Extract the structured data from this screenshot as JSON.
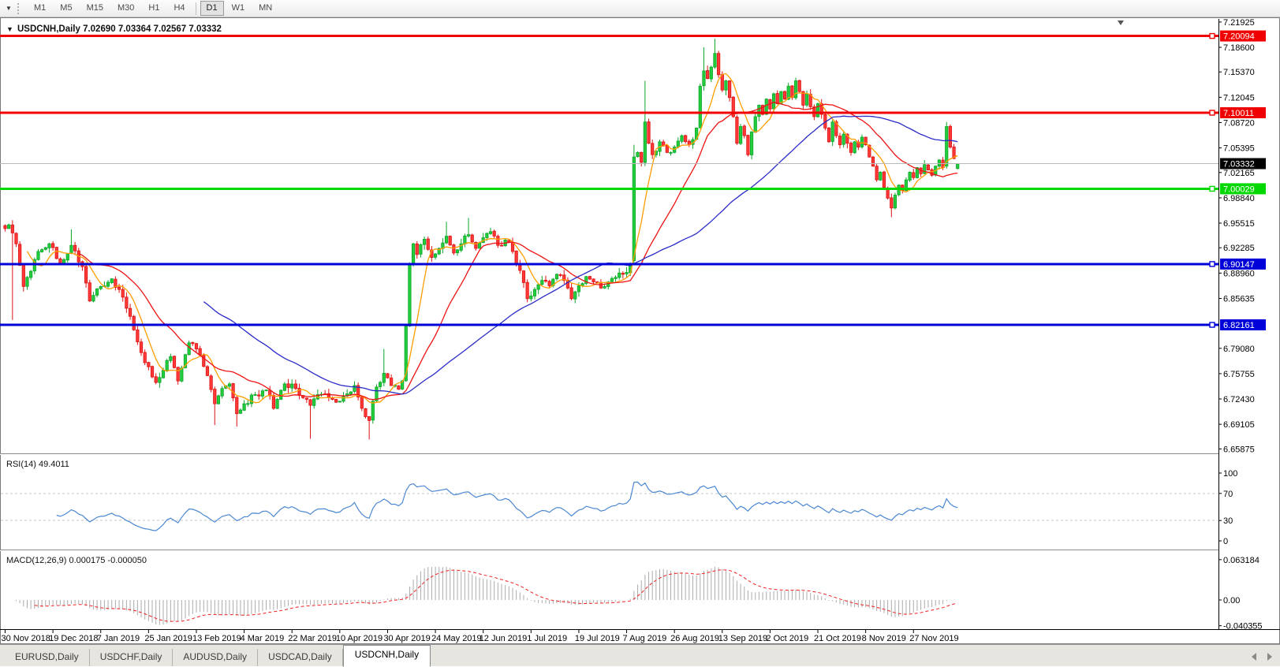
{
  "toolbar": {
    "dropdown_icon": "▼",
    "timeframes": [
      {
        "label": "M1",
        "active": false
      },
      {
        "label": "M5",
        "active": false
      },
      {
        "label": "M15",
        "active": false
      },
      {
        "label": "M30",
        "active": false
      },
      {
        "label": "H1",
        "active": false
      },
      {
        "label": "H4",
        "active": false
      },
      {
        "label": "D1",
        "active": true,
        "sep_before": true
      },
      {
        "label": "W1",
        "active": false
      },
      {
        "label": "MN",
        "active": false
      }
    ]
  },
  "header": {
    "collapse_icon": "▼",
    "title": "USDCNH,Daily  7.02690 7.03364 7.02567 7.03332"
  },
  "price_axis": {
    "ticks": [
      "7.21925",
      "7.18600",
      "7.15370",
      "7.12045",
      "7.08720",
      "7.05395",
      "7.02165",
      "6.98840",
      "6.95515",
      "6.92285",
      "6.88960",
      "6.85635",
      "6.79080",
      "6.75755",
      "6.72430",
      "6.69105",
      "6.65875"
    ]
  },
  "rsi_panel": {
    "title": "RSI(14) 49.4011",
    "value": 49.4011,
    "levels": [
      100,
      70,
      30,
      0
    ],
    "line_color": "#4b87d2"
  },
  "macd_panel": {
    "title": "MACD(12,26,9) 0.000175 -0.000050",
    "macd_value": 0.000175,
    "signal_value": -5e-05,
    "scale": [
      {
        "label": "0.063184",
        "v": 0.063184
      },
      {
        "label": "0.00",
        "v": 0
      },
      {
        "label": "-0.040355",
        "v": -0.040355
      }
    ],
    "histogram_color": "#ababab",
    "signal_color": "#f02020"
  },
  "date_axis": {
    "tick_interval_bars": 13,
    "labels": [
      "30 Nov 2018",
      "19 Dec 2018",
      "7 Jan 2019",
      "25 Jan 2019",
      "13 Feb 2019",
      "4 Mar 2019",
      "22 Mar 2019",
      "10 Apr 2019",
      "30 Apr 2019",
      "24 May 2019",
      "12 Jun 2019",
      "1 Jul 2019",
      "19 Jul 2019",
      "7 Aug 2019",
      "26 Aug 2019",
      "13 Sep 2019",
      "2 Oct 2019",
      "21 Oct 2019",
      "8 Nov 2019",
      "27 Nov 2019"
    ]
  },
  "tabs": [
    {
      "label": "EURUSD,Daily",
      "active": false
    },
    {
      "label": "USDCHF,Daily",
      "active": false
    },
    {
      "label": "AUDUSD,Daily",
      "active": false
    },
    {
      "label": "USDCAD,Daily",
      "active": false
    },
    {
      "label": "USDCNH,Daily",
      "active": true
    }
  ],
  "chart_data": {
    "type": "candlestick",
    "symbol": "USDCNH",
    "timeframe": "Daily",
    "current_bar": {
      "open": 7.0269,
      "high": 7.03364,
      "low": 7.02567,
      "close": 7.03332
    },
    "bar_count": 260,
    "y_range": {
      "min": 6.65875,
      "max": 7.21925
    },
    "horizontal_lines": [
      {
        "price": 7.20094,
        "label": "7.20094",
        "color": "#f00000",
        "width": 3,
        "kind": "resistance"
      },
      {
        "price": 7.10011,
        "label": "7.10011",
        "color": "#f00000",
        "width": 3,
        "kind": "resistance"
      },
      {
        "price": 7.00029,
        "label": "7.00029",
        "color": "#00d800",
        "width": 3,
        "kind": "support"
      },
      {
        "price": 6.90147,
        "label": "6.90147",
        "color": "#0000d8",
        "width": 3,
        "kind": "support"
      },
      {
        "price": 6.82161,
        "label": "6.82161",
        "color": "#0000d8",
        "width": 3,
        "kind": "support"
      }
    ],
    "current_price_line": {
      "price": 7.03332,
      "label": "7.03332",
      "line_color": "#b8b8b8",
      "label_bg": "#000000"
    },
    "moving_averages": [
      {
        "period": 7,
        "color": "#ff9d00"
      },
      {
        "period": 21,
        "color": "#ee1414"
      },
      {
        "period": 55,
        "color": "#2b2bc8"
      }
    ],
    "candle_colors": {
      "up_fill": "#22ce3c",
      "up_stroke": "#0ca52a",
      "down_fill": "#ff3838",
      "down_stroke": "#dd1212"
    },
    "noise": 0.009,
    "close_keyframes": [
      [
        0,
        6.948
      ],
      [
        1,
        6.953
      ],
      [
        3,
        6.928
      ],
      [
        5,
        6.872
      ],
      [
        7,
        6.892
      ],
      [
        9,
        6.918
      ],
      [
        12,
        6.928
      ],
      [
        15,
        6.902
      ],
      [
        18,
        6.926
      ],
      [
        21,
        6.898
      ],
      [
        23,
        6.853
      ],
      [
        26,
        6.872
      ],
      [
        29,
        6.882
      ],
      [
        32,
        6.858
      ],
      [
        35,
        6.815
      ],
      [
        38,
        6.772
      ],
      [
        41,
        6.746
      ],
      [
        43,
        6.762
      ],
      [
        45,
        6.78
      ],
      [
        47,
        6.748
      ],
      [
        50,
        6.798
      ],
      [
        52,
        6.79
      ],
      [
        55,
        6.755
      ],
      [
        57,
        6.718
      ],
      [
        59,
        6.738
      ],
      [
        61,
        6.744
      ],
      [
        63,
        6.705
      ],
      [
        65,
        6.718
      ],
      [
        68,
        6.73
      ],
      [
        71,
        6.736
      ],
      [
        73,
        6.712
      ],
      [
        76,
        6.744
      ],
      [
        79,
        6.738
      ],
      [
        81,
        6.726
      ],
      [
        83,
        6.716
      ],
      [
        85,
        6.73
      ],
      [
        88,
        6.726
      ],
      [
        90,
        6.72
      ],
      [
        93,
        6.731
      ],
      [
        95,
        6.742
      ],
      [
        97,
        6.712
      ],
      [
        99,
        6.696
      ],
      [
        101,
        6.74
      ],
      [
        103,
        6.758
      ],
      [
        105,
        6.742
      ],
      [
        107,
        6.737
      ],
      [
        108,
        6.748
      ],
      [
        109,
        6.82
      ],
      [
        110,
        6.902
      ],
      [
        111,
        6.928
      ],
      [
        112,
        6.914
      ],
      [
        114,
        6.934
      ],
      [
        116,
        6.91
      ],
      [
        118,
        6.922
      ],
      [
        120,
        6.938
      ],
      [
        122,
        6.916
      ],
      [
        124,
        6.928
      ],
      [
        126,
        6.94
      ],
      [
        128,
        6.922
      ],
      [
        130,
        6.936
      ],
      [
        132,
        6.944
      ],
      [
        134,
        6.926
      ],
      [
        136,
        6.933
      ],
      [
        138,
        6.918
      ],
      [
        140,
        6.893
      ],
      [
        142,
        6.856
      ],
      [
        144,
        6.868
      ],
      [
        146,
        6.88
      ],
      [
        148,
        6.873
      ],
      [
        150,
        6.888
      ],
      [
        152,
        6.88
      ],
      [
        154,
        6.856
      ],
      [
        156,
        6.873
      ],
      [
        158,
        6.885
      ],
      [
        160,
        6.878
      ],
      [
        162,
        6.87
      ],
      [
        164,
        6.878
      ],
      [
        166,
        6.884
      ],
      [
        168,
        6.888
      ],
      [
        170,
        6.902
      ],
      [
        171,
        7.042
      ],
      [
        172,
        7.048
      ],
      [
        173,
        7.035
      ],
      [
        174,
        7.088
      ],
      [
        175,
        7.06
      ],
      [
        176,
        7.045
      ],
      [
        178,
        7.062
      ],
      [
        180,
        7.048
      ],
      [
        182,
        7.055
      ],
      [
        184,
        7.07
      ],
      [
        186,
        7.058
      ],
      [
        188,
        7.08
      ],
      [
        189,
        7.135
      ],
      [
        190,
        7.155
      ],
      [
        191,
        7.145
      ],
      [
        192,
        7.16
      ],
      [
        193,
        7.178
      ],
      [
        194,
        7.15
      ],
      [
        195,
        7.13
      ],
      [
        196,
        7.142
      ],
      [
        197,
        7.12
      ],
      [
        198,
        7.095
      ],
      [
        199,
        7.06
      ],
      [
        200,
        7.082
      ],
      [
        201,
        7.07
      ],
      [
        202,
        7.045
      ],
      [
        203,
        7.075
      ],
      [
        204,
        7.095
      ],
      [
        205,
        7.11
      ],
      [
        206,
        7.098
      ],
      [
        207,
        7.118
      ],
      [
        208,
        7.105
      ],
      [
        209,
        7.125
      ],
      [
        210,
        7.112
      ],
      [
        211,
        7.128
      ],
      [
        212,
        7.118
      ],
      [
        213,
        7.135
      ],
      [
        214,
        7.12
      ],
      [
        215,
        7.142
      ],
      [
        216,
        7.128
      ],
      [
        217,
        7.11
      ],
      [
        218,
        7.125
      ],
      [
        219,
        7.108
      ],
      [
        220,
        7.095
      ],
      [
        221,
        7.112
      ],
      [
        222,
        7.098
      ],
      [
        223,
        7.08
      ],
      [
        224,
        7.062
      ],
      [
        225,
        7.088
      ],
      [
        226,
        7.07
      ],
      [
        227,
        7.058
      ],
      [
        228,
        7.072
      ],
      [
        229,
        7.06
      ],
      [
        230,
        7.048
      ],
      [
        231,
        7.062
      ],
      [
        232,
        7.055
      ],
      [
        233,
        7.068
      ],
      [
        234,
        7.058
      ],
      [
        235,
        7.042
      ],
      [
        236,
        7.03
      ],
      [
        237,
        7.012
      ],
      [
        238,
        7.022
      ],
      [
        239,
        7.002
      ],
      [
        240,
        6.988
      ],
      [
        241,
        6.975
      ],
      [
        242,
        6.992
      ],
      [
        243,
        7.005
      ],
      [
        244,
        6.998
      ],
      [
        245,
        7.012
      ],
      [
        246,
        7.022
      ],
      [
        247,
        7.015
      ],
      [
        248,
        7.028
      ],
      [
        249,
        7.02
      ],
      [
        250,
        7.032
      ],
      [
        251,
        7.025
      ],
      [
        252,
        7.018
      ],
      [
        253,
        7.03
      ],
      [
        254,
        7.038
      ],
      [
        255,
        7.028
      ],
      [
        256,
        7.082
      ],
      [
        257,
        7.055
      ],
      [
        258,
        7.04
      ],
      [
        259,
        7.0333
      ]
    ],
    "bar_events": [
      {
        "i": 2,
        "low": 6.828
      },
      {
        "i": 18,
        "high": 6.947
      },
      {
        "i": 57,
        "low": 6.69
      },
      {
        "i": 63,
        "low": 6.688
      },
      {
        "i": 83,
        "low": 6.672
      },
      {
        "i": 99,
        "low": 6.671
      },
      {
        "i": 103,
        "high": 6.79
      },
      {
        "i": 120,
        "high": 6.957
      },
      {
        "i": 126,
        "high": 6.962
      },
      {
        "i": 171,
        "open": 6.906,
        "low": 6.9,
        "high": 7.058
      },
      {
        "i": 174,
        "high": 7.142
      },
      {
        "i": 190,
        "high": 7.186
      },
      {
        "i": 193,
        "high": 7.197
      },
      {
        "i": 241,
        "low": 6.963
      },
      {
        "i": 256,
        "open": 7.03,
        "high": 7.088
      },
      {
        "i": 259,
        "open": 7.0269,
        "high": 7.03364,
        "low": 7.02567,
        "close": 7.03332
      }
    ]
  }
}
